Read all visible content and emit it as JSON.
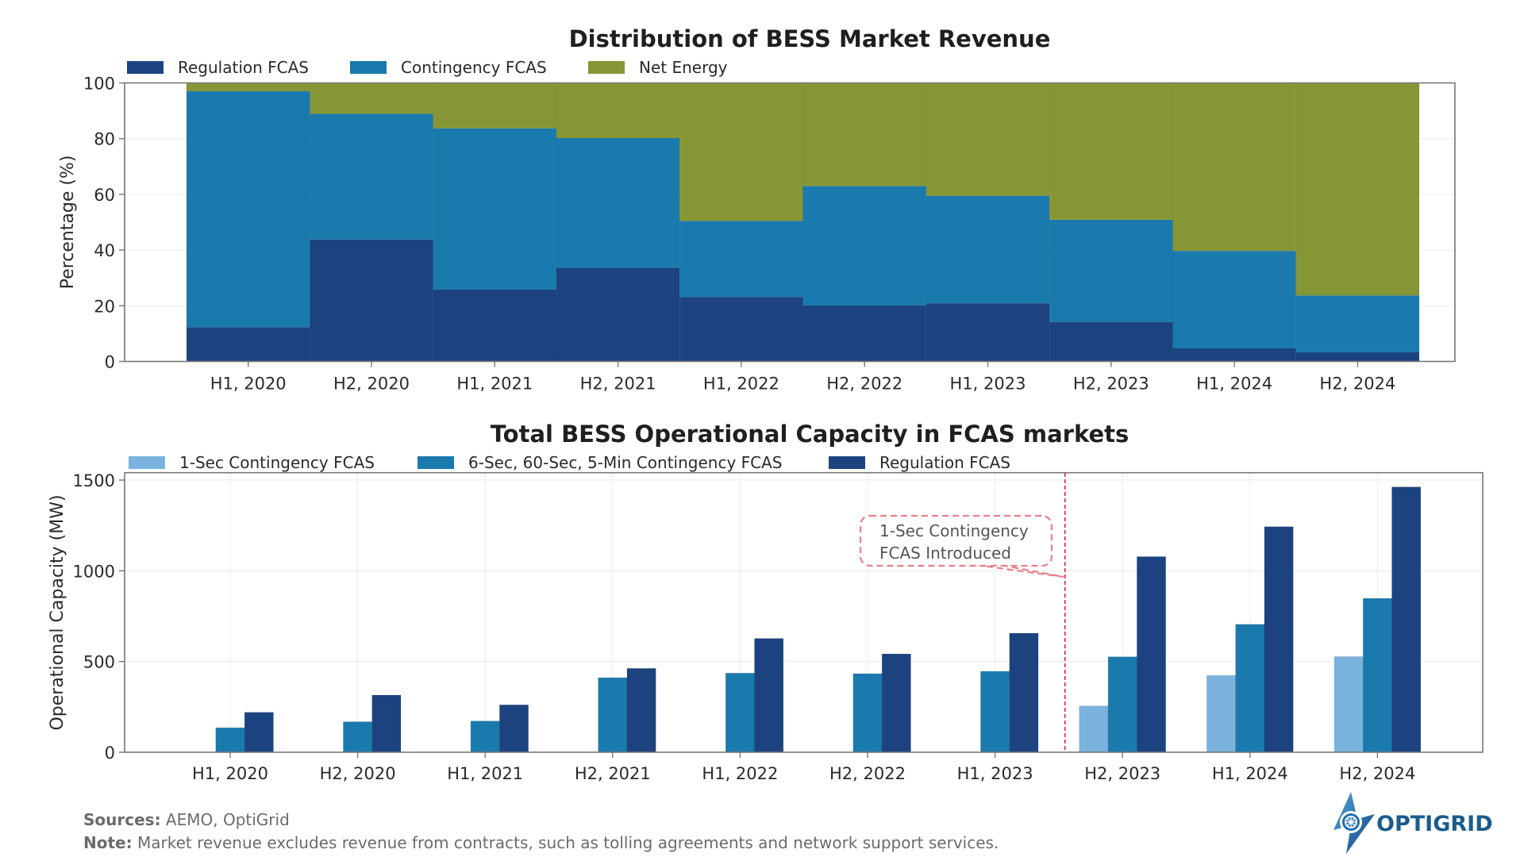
{
  "colors": {
    "regulation": "#1c4380",
    "contingency": "#1a7aad",
    "net_energy": "#879635",
    "one_sec": "#7ab3de",
    "annotation_line": "#d7263d",
    "annotation_box": "#e8808a"
  },
  "chart_data": [
    {
      "type": "bar",
      "stacked": true,
      "title": "Distribution of BESS Market Revenue",
      "xlabel": "",
      "ylabel": "Percentage (%)",
      "ylim": [
        0,
        100
      ],
      "yticks": [
        "0",
        "20",
        "40",
        "60",
        "80",
        "100"
      ],
      "ytick_values": [
        0,
        20,
        40,
        60,
        80,
        100
      ],
      "grid": true,
      "legend_position": "top-left",
      "categories": [
        "H1, 2020",
        "H2, 2020",
        "H1, 2021",
        "H2, 2021",
        "H1, 2022",
        "H2, 2022",
        "H1, 2023",
        "H2, 2023",
        "H1, 2024",
        "H2, 2024"
      ],
      "series": [
        {
          "name": "Regulation FCAS",
          "color_key": "regulation",
          "values": [
            12.3,
            43.8,
            25.8,
            33.6,
            23.1,
            20.1,
            20.9,
            14.2,
            4.7,
            3.3
          ]
        },
        {
          "name": "Contingency FCAS",
          "color_key": "contingency",
          "values": [
            84.7,
            45.1,
            57.9,
            46.6,
            27.4,
            42.9,
            38.6,
            36.7,
            35.0,
            20.4
          ]
        },
        {
          "name": "Net Energy",
          "color_key": "net_energy",
          "values": [
            3.0,
            11.1,
            16.3,
            19.8,
            49.5,
            37.0,
            40.5,
            49.1,
            60.3,
            76.3
          ]
        }
      ]
    },
    {
      "type": "bar",
      "stacked": false,
      "title": "Total BESS Operational Capacity in FCAS markets",
      "xlabel": "",
      "ylabel": "Operational Capacity (MW)",
      "ylim": [
        0,
        1540
      ],
      "yticks": [
        "0",
        "500",
        "1000",
        "1500"
      ],
      "ytick_values": [
        0,
        500,
        1000,
        1500
      ],
      "grid": true,
      "legend_position": "top-left",
      "categories": [
        "H1, 2020",
        "H2, 2020",
        "H1, 2021",
        "H2, 2021",
        "H1, 2022",
        "H2, 2022",
        "H1, 2023",
        "H2, 2023",
        "H1, 2024",
        "H2, 2024"
      ],
      "series": [
        {
          "name": "1-Sec Contingency FCAS",
          "color_key": "one_sec",
          "values": [
            0,
            0,
            0,
            0,
            0,
            0,
            0,
            255,
            423,
            527
          ]
        },
        {
          "name": "6-Sec, 60-Sec, 5-Min Contingency FCAS",
          "color_key": "contingency",
          "values": [
            135,
            168,
            172,
            411,
            436,
            433,
            446,
            526,
            705,
            848
          ]
        },
        {
          "name": "Regulation FCAS",
          "color_key": "regulation",
          "values": [
            220,
            315,
            261,
            462,
            627,
            542,
            656,
            1078,
            1243,
            1462
          ]
        }
      ],
      "annotation": {
        "text_lines": [
          "1-Sec Contingency",
          "FCAS Introduced"
        ],
        "vertical_line_between": [
          "H1, 2023",
          "H2, 2023"
        ],
        "style": "dashed red"
      }
    }
  ],
  "footer": {
    "sources_label": "Sources:",
    "sources_text": " AEMO, OptiGrid",
    "note_label": "Note:",
    "note_text": " Market revenue excludes revenue from contracts, such as tolling agreements and network support services."
  },
  "logo": {
    "text": "OPTIGRID"
  }
}
